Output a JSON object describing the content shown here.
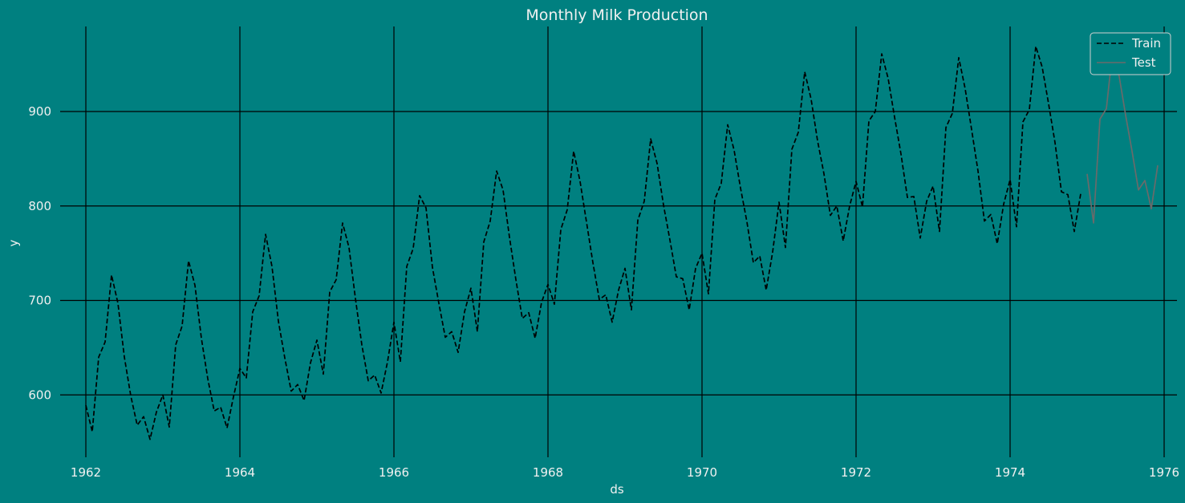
{
  "chart_data": {
    "type": "line",
    "title": "Monthly Milk Production",
    "xlabel": "ds",
    "ylabel": "y",
    "x_ticks": [
      "1962",
      "1964",
      "1966",
      "1968",
      "1970",
      "1972",
      "1974",
      "1976"
    ],
    "y_ticks": [
      "600",
      "700",
      "800",
      "900"
    ],
    "xlim": [
      "1961-09",
      "1976-03"
    ],
    "ylim": [
      534,
      990
    ],
    "grid": true,
    "legend_position": "top-right",
    "x_start": "1962-01",
    "frequency": "monthly",
    "series": [
      {
        "name": "Train",
        "style": "dashed",
        "color": "#000000",
        "start": "1962-01",
        "values": [
          589,
          561,
          640,
          656,
          727,
          697,
          640,
          599,
          568,
          577,
          553,
          582,
          600,
          566,
          653,
          673,
          742,
          716,
          660,
          617,
          583,
          587,
          565,
          598,
          628,
          618,
          688,
          705,
          770,
          736,
          678,
          639,
          604,
          611,
          594,
          634,
          658,
          622,
          709,
          722,
          782,
          756,
          702,
          653,
          615,
          621,
          602,
          635,
          677,
          635,
          736,
          755,
          811,
          798,
          735,
          697,
          661,
          667,
          645,
          688,
          713,
          667,
          762,
          784,
          837,
          817,
          767,
          722,
          681,
          687,
          660,
          698,
          717,
          696,
          775,
          796,
          858,
          826,
          783,
          740,
          701,
          706,
          677,
          711,
          734,
          690,
          785,
          805,
          871,
          845,
          801,
          764,
          725,
          723,
          690,
          734,
          750,
          707,
          807,
          824,
          886,
          859,
          819,
          783,
          740,
          747,
          711,
          751,
          804,
          756,
          860,
          878,
          942,
          913,
          869,
          834,
          790,
          800,
          763,
          800,
          826,
          799,
          890,
          900,
          961,
          935,
          894,
          855,
          809,
          810,
          766,
          805,
          821,
          773,
          883,
          898,
          957,
          924,
          881,
          837,
          784,
          791,
          760,
          802,
          828,
          778,
          889,
          902,
          969,
          947,
          908,
          867,
          815,
          812,
          773,
          813
        ]
      },
      {
        "name": "Test",
        "style": "solid",
        "color": "#6a6a6a",
        "start": "1975-01",
        "values": [
          834,
          782,
          892,
          903,
          966,
          937,
          896,
          858,
          817,
          827,
          797,
          843
        ]
      }
    ]
  }
}
